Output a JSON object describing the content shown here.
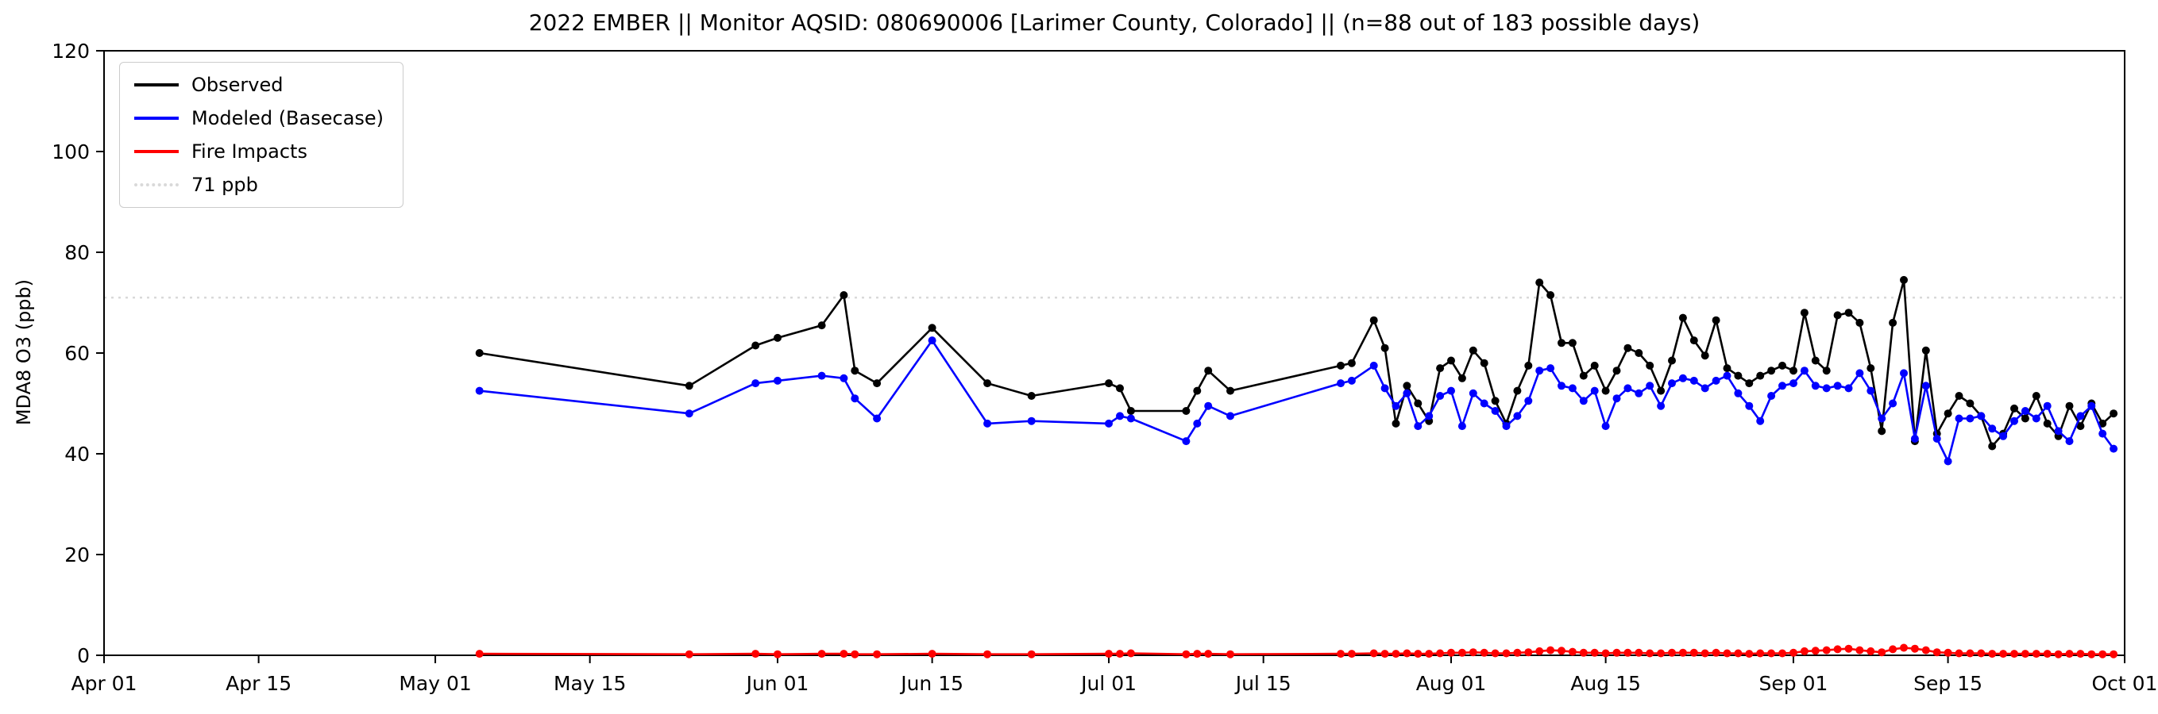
{
  "chart_data": {
    "type": "line",
    "title": "2022 EMBER || Monitor AQSID: 080690006 [Larimer County, Colorado] || (n=88 out of 183 possible days)",
    "ylabel": "MDA8 O3 (ppb)",
    "xlabel": "",
    "ylim": [
      0,
      120
    ],
    "yticks": [
      0,
      20,
      40,
      60,
      80,
      100,
      120
    ],
    "xlim": [
      "2022-04-01",
      "2022-10-01"
    ],
    "xticks": [
      {
        "date": "2022-04-01",
        "label": "Apr 01"
      },
      {
        "date": "2022-04-15",
        "label": "Apr 15"
      },
      {
        "date": "2022-05-01",
        "label": "May 01"
      },
      {
        "date": "2022-05-15",
        "label": "May 15"
      },
      {
        "date": "2022-06-01",
        "label": "Jun 01"
      },
      {
        "date": "2022-06-15",
        "label": "Jun 15"
      },
      {
        "date": "2022-07-01",
        "label": "Jul 01"
      },
      {
        "date": "2022-07-15",
        "label": "Jul 15"
      },
      {
        "date": "2022-08-01",
        "label": "Aug 01"
      },
      {
        "date": "2022-08-15",
        "label": "Aug 15"
      },
      {
        "date": "2022-09-01",
        "label": "Sep 01"
      },
      {
        "date": "2022-09-15",
        "label": "Sep 15"
      },
      {
        "date": "2022-10-01",
        "label": "Oct 01"
      }
    ],
    "grid": false,
    "legend_position": "upper-left",
    "threshold": {
      "value": 71,
      "label": "71 ppb",
      "color": "#d9d9d9",
      "style": "dotted"
    },
    "x_dates": [
      "2022-05-05",
      "2022-05-24",
      "2022-05-30",
      "2022-06-01",
      "2022-06-05",
      "2022-06-07",
      "2022-06-08",
      "2022-06-10",
      "2022-06-15",
      "2022-06-20",
      "2022-06-24",
      "2022-07-01",
      "2022-07-02",
      "2022-07-03",
      "2022-07-08",
      "2022-07-09",
      "2022-07-10",
      "2022-07-12",
      "2022-07-22",
      "2022-07-23",
      "2022-07-25",
      "2022-07-26",
      "2022-07-27",
      "2022-07-28",
      "2022-07-29",
      "2022-07-30",
      "2022-07-31",
      "2022-08-01",
      "2022-08-02",
      "2022-08-03",
      "2022-08-04",
      "2022-08-05",
      "2022-08-06",
      "2022-08-07",
      "2022-08-08",
      "2022-08-09",
      "2022-08-10",
      "2022-08-11",
      "2022-08-12",
      "2022-08-13",
      "2022-08-14",
      "2022-08-15",
      "2022-08-16",
      "2022-08-17",
      "2022-08-18",
      "2022-08-19",
      "2022-08-20",
      "2022-08-21",
      "2022-08-22",
      "2022-08-23",
      "2022-08-24",
      "2022-08-25",
      "2022-08-26",
      "2022-08-27",
      "2022-08-28",
      "2022-08-29",
      "2022-08-30",
      "2022-08-31",
      "2022-09-01",
      "2022-09-02",
      "2022-09-03",
      "2022-09-04",
      "2022-09-05",
      "2022-09-06",
      "2022-09-07",
      "2022-09-08",
      "2022-09-09",
      "2022-09-10",
      "2022-09-11",
      "2022-09-12",
      "2022-09-13",
      "2022-09-14",
      "2022-09-15",
      "2022-09-16",
      "2022-09-17",
      "2022-09-18",
      "2022-09-19",
      "2022-09-20",
      "2022-09-21",
      "2022-09-22",
      "2022-09-23",
      "2022-09-24",
      "2022-09-25",
      "2022-09-26",
      "2022-09-27",
      "2022-09-28",
      "2022-09-29",
      "2022-09-30"
    ],
    "series": [
      {
        "name": "Observed",
        "color": "#000000",
        "values": [
          60,
          53.5,
          61.5,
          63,
          65.5,
          71.5,
          56.5,
          54,
          65,
          54,
          51.5,
          54,
          53,
          48.5,
          48.5,
          52.5,
          56.5,
          52.5,
          57.5,
          58,
          66.5,
          61,
          46,
          53.5,
          50,
          46.5,
          57,
          58.5,
          55,
          60.5,
          58,
          50.5,
          46,
          52.5,
          57.5,
          74,
          71.5,
          62,
          62,
          55.5,
          57.5,
          52.5,
          56.5,
          61,
          60,
          57.5,
          52.5,
          58.5,
          67,
          62.5,
          59.5,
          66.5,
          57,
          55.5,
          54,
          55.5,
          56.5,
          57.5,
          56.5,
          68,
          58.5,
          56.5,
          67.5,
          68,
          66,
          57,
          44.5,
          66,
          74.5,
          42.5,
          60.5,
          44,
          48,
          51.5,
          50,
          47.5,
          41.5,
          44,
          49,
          47,
          51.5,
          46,
          43.5,
          49.5,
          45.5,
          50,
          46,
          48
        ]
      },
      {
        "name": "Modeled (Basecase)",
        "color": "#0000ff",
        "values": [
          52.5,
          48,
          54,
          54.5,
          55.5,
          55,
          51,
          47,
          62.5,
          46,
          46.5,
          46,
          47.5,
          47,
          42.5,
          46,
          49.5,
          47.5,
          54,
          54.5,
          57.5,
          53,
          49.5,
          52,
          45.5,
          47.5,
          51.5,
          52.5,
          45.5,
          52,
          50,
          48.5,
          45.5,
          47.5,
          50.5,
          56.5,
          57,
          53.5,
          53,
          50.5,
          52.5,
          45.5,
          51,
          53,
          52,
          53.5,
          49.5,
          54,
          55,
          54.5,
          53,
          54.5,
          55.5,
          52,
          49.5,
          46.5,
          51.5,
          53.5,
          54,
          56.5,
          53.5,
          53,
          53.5,
          53,
          56,
          52.5,
          47,
          50,
          56,
          43,
          53.5,
          43,
          38.5,
          47,
          47,
          47.5,
          45,
          43.5,
          46.5,
          48.5,
          47,
          49.5,
          44.5,
          42.5,
          47.5,
          49.5,
          44,
          41
        ]
      },
      {
        "name": "Fire Impacts",
        "color": "#ff0000",
        "values": [
          0.3,
          0.2,
          0.3,
          0.2,
          0.3,
          0.3,
          0.2,
          0.2,
          0.3,
          0.2,
          0.2,
          0.3,
          0.3,
          0.4,
          0.2,
          0.3,
          0.3,
          0.2,
          0.3,
          0.3,
          0.4,
          0.3,
          0.3,
          0.4,
          0.3,
          0.3,
          0.4,
          0.5,
          0.5,
          0.6,
          0.5,
          0.4,
          0.4,
          0.5,
          0.6,
          0.8,
          1.0,
          0.9,
          0.7,
          0.5,
          0.5,
          0.4,
          0.5,
          0.5,
          0.5,
          0.4,
          0.4,
          0.5,
          0.5,
          0.5,
          0.4,
          0.5,
          0.4,
          0.4,
          0.3,
          0.4,
          0.4,
          0.4,
          0.5,
          0.8,
          0.9,
          1.0,
          1.2,
          1.3,
          1.0,
          0.8,
          0.6,
          1.2,
          1.5,
          1.3,
          1.0,
          0.6,
          0.5,
          0.4,
          0.4,
          0.4,
          0.3,
          0.3,
          0.3,
          0.3,
          0.3,
          0.3,
          0.2,
          0.3,
          0.3,
          0.2,
          0.2,
          0.2
        ]
      }
    ],
    "legend_entries": [
      "Observed",
      "Modeled (Basecase)",
      "Fire Impacts",
      "71 ppb"
    ]
  }
}
